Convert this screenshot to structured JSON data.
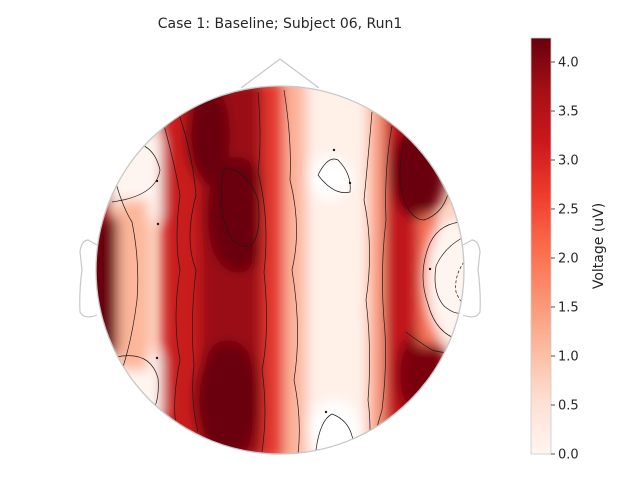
{
  "title": "Case 1: Baseline; Subject 06, Run1",
  "colorbar": {
    "label": "Voltage (uV)",
    "ticks": [
      "0.0",
      "0.5",
      "1.0",
      "1.5",
      "2.0",
      "2.5",
      "3.0",
      "3.5",
      "4.0"
    ],
    "min": 0.0,
    "max": 4.25,
    "colormap": "Reds",
    "colors": [
      "#fff5f0",
      "#fee0d2",
      "#fcbba1",
      "#fc9272",
      "#fb6a4a",
      "#ef3b2c",
      "#cb181d",
      "#a50f15",
      "#67000d"
    ]
  },
  "topomap": {
    "head_outline_color": "#c8c8c8",
    "contour_color": "#1a1a1a",
    "electrode_marker": "dot"
  }
}
